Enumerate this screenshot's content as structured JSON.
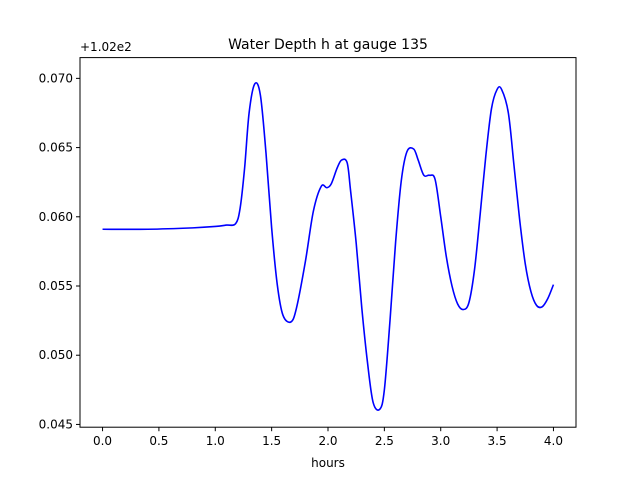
{
  "chart_data": {
    "type": "line",
    "title": "Water Depth h at gauge 135",
    "xlabel": "hours",
    "ylabel": "",
    "y_offset_label": "+1.02e2",
    "xlim": [
      -0.2,
      4.2
    ],
    "ylim": [
      0.0448,
      0.0715
    ],
    "x_ticks": [
      0.0,
      0.5,
      1.0,
      1.5,
      2.0,
      2.5,
      3.0,
      3.5,
      4.0
    ],
    "x_tick_labels": [
      "0.0",
      "0.5",
      "1.0",
      "1.5",
      "2.0",
      "2.5",
      "3.0",
      "3.5",
      "4.0"
    ],
    "y_ticks": [
      0.045,
      0.05,
      0.055,
      0.06,
      0.065,
      0.07
    ],
    "y_tick_labels": [
      "0.045",
      "0.050",
      "0.055",
      "0.060",
      "0.065",
      "0.070"
    ],
    "grid": false,
    "series": [
      {
        "color": "#0000ff",
        "x": [
          0.0,
          0.4,
          0.8,
          1.0,
          1.1,
          1.18,
          1.22,
          1.26,
          1.3,
          1.35,
          1.4,
          1.45,
          1.5,
          1.55,
          1.6,
          1.67,
          1.72,
          1.8,
          1.87,
          1.94,
          1.99,
          2.03,
          2.08,
          2.12,
          2.17,
          2.2,
          2.25,
          2.3,
          2.35,
          2.4,
          2.46,
          2.5,
          2.55,
          2.6,
          2.65,
          2.7,
          2.76,
          2.8,
          2.85,
          2.9,
          2.95,
          3.0,
          3.05,
          3.1,
          3.15,
          3.2,
          3.25,
          3.3,
          3.35,
          3.4,
          3.45,
          3.5,
          3.54,
          3.6,
          3.65,
          3.7,
          3.75,
          3.8,
          3.85,
          3.9,
          3.95,
          4.0
        ],
        "y": [
          0.0591,
          0.0591,
          0.0592,
          0.0593,
          0.0594,
          0.0595,
          0.0606,
          0.0635,
          0.0675,
          0.0696,
          0.0688,
          0.0646,
          0.0592,
          0.0551,
          0.0529,
          0.0524,
          0.0534,
          0.0568,
          0.0604,
          0.0622,
          0.0621,
          0.0624,
          0.0635,
          0.0641,
          0.0639,
          0.0619,
          0.0581,
          0.0534,
          0.0495,
          0.0466,
          0.0461,
          0.0475,
          0.0525,
          0.0582,
          0.0626,
          0.0647,
          0.0649,
          0.0641,
          0.063,
          0.063,
          0.0627,
          0.06,
          0.0571,
          0.055,
          0.0537,
          0.0533,
          0.0538,
          0.0562,
          0.0602,
          0.0644,
          0.0678,
          0.0692,
          0.0692,
          0.0675,
          0.0637,
          0.0598,
          0.0566,
          0.0546,
          0.0536,
          0.0535,
          0.0541,
          0.0551
        ]
      }
    ]
  }
}
